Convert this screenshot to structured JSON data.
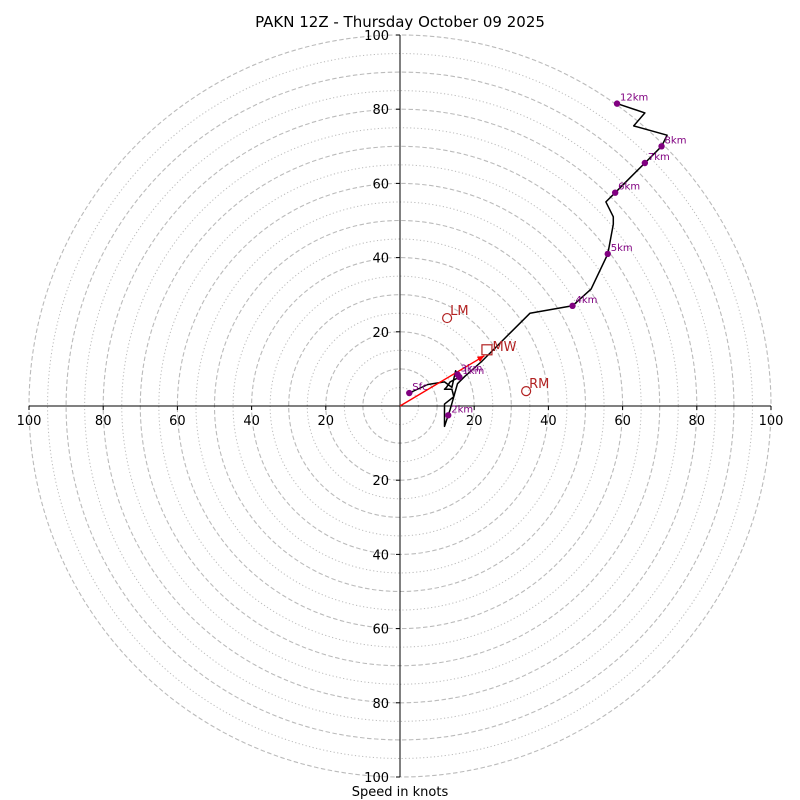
{
  "chart_data": {
    "type": "hodograph",
    "title": "PAKN 12Z - Thursday October 09 2025",
    "xlabel": "Speed in knots",
    "range": [
      -100,
      100
    ],
    "rings_dashed": [
      10,
      20,
      30,
      40,
      50,
      60,
      70,
      80,
      90,
      100
    ],
    "rings_dotted": [
      5,
      15,
      25,
      35,
      45,
      55,
      65,
      75,
      85,
      95
    ],
    "tick_values": [
      20,
      40,
      60,
      80,
      100
    ],
    "tick_labels": [
      "20",
      "40",
      "60",
      "80",
      "100"
    ],
    "colors": {
      "trace": "#000000",
      "height_marker": "#800080",
      "motion": "#b22222",
      "mean_wind_vector": "#ff0000",
      "grid": "#bbbbbb"
    },
    "hodograph_trace": [
      [
        2.5,
        3.5
      ],
      [
        7.5,
        5.8
      ],
      [
        12,
        6.5
      ],
      [
        14,
        5
      ],
      [
        15,
        9.5
      ],
      [
        16,
        7.8
      ],
      [
        13.5,
        6.5
      ],
      [
        12.5,
        5
      ],
      [
        12,
        4.5
      ],
      [
        14,
        4.5
      ],
      [
        14.5,
        2.5
      ],
      [
        12,
        0.5
      ],
      [
        12,
        -2.5
      ],
      [
        12,
        -5.5
      ],
      [
        13,
        -2.5
      ],
      [
        13.5,
        -1
      ],
      [
        15.5,
        6
      ],
      [
        17.5,
        8
      ],
      [
        22,
        12
      ],
      [
        26,
        16
      ],
      [
        30,
        20
      ],
      [
        35,
        25
      ],
      [
        46.5,
        27
      ],
      [
        51.5,
        31.5
      ],
      [
        56,
        41
      ],
      [
        57.5,
        49
      ],
      [
        57.5,
        51
      ],
      [
        55.5,
        55
      ],
      [
        58,
        57.5
      ],
      [
        62,
        61.5
      ],
      [
        66,
        65.5
      ],
      [
        70.5,
        70
      ],
      [
        72,
        73
      ],
      [
        63,
        75.5
      ],
      [
        66,
        79
      ],
      [
        58.5,
        81.5
      ]
    ],
    "height_markers": [
      {
        "label": "Sfc",
        "u": 2.5,
        "v": 3.5
      },
      {
        "label": "1km",
        "u": 16,
        "v": 7.8
      },
      {
        "label": "2km",
        "u": 13,
        "v": -2.5
      },
      {
        "label": "3km",
        "u": 15.5,
        "v": 8.5
      },
      {
        "label": "4km",
        "u": 46.5,
        "v": 27
      },
      {
        "label": "5km",
        "u": 56,
        "v": 41
      },
      {
        "label": "6km",
        "u": 58,
        "v": 57.5
      },
      {
        "label": "7km",
        "u": 66,
        "v": 65.5
      },
      {
        "label": "8km",
        "u": 70.5,
        "v": 70
      },
      {
        "label": "12km",
        "u": 58.5,
        "v": 81.5
      }
    ],
    "storm_motions": [
      {
        "label": "LM",
        "u": 12.7,
        "v": 23.7,
        "marker": "circle"
      },
      {
        "label": "RM",
        "u": 34,
        "v": 4,
        "marker": "circle"
      },
      {
        "label": "MW",
        "u": 23.3,
        "v": 13.8,
        "marker": "square"
      }
    ]
  }
}
